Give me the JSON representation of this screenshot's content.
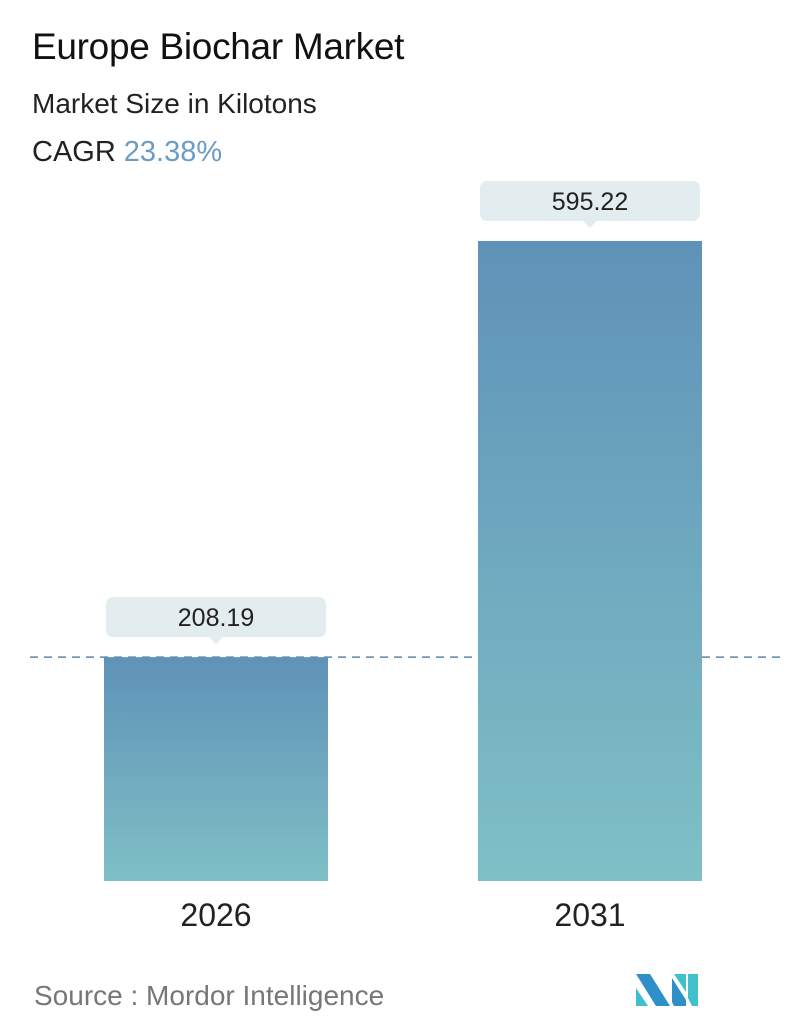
{
  "header": {
    "title": "Europe Biochar Market",
    "subtitle": "Market Size in Kilotons",
    "cagr_label": "CAGR",
    "cagr_value": "23.38%"
  },
  "chart_data": {
    "type": "bar",
    "title": "Europe Biochar Market",
    "ylabel": "Market Size in Kilotons",
    "categories": [
      "2026",
      "2031"
    ],
    "values": [
      208.19,
      595.22
    ],
    "value_labels": [
      "208.19",
      "595.22"
    ],
    "ylim": [
      0,
      595.22
    ],
    "grid": false,
    "reference_line": 208.19,
    "colors": {
      "bar_top": "#5f92b8",
      "bar_bottom": "#7fc0c6",
      "label_bg": "#e3ecee",
      "dashed_line": "#5a86ad",
      "accent": "#6a9cc4"
    }
  },
  "footer": {
    "source": "Source :  Mordor Intelligence",
    "logo": "Mordor Intelligence logo"
  }
}
